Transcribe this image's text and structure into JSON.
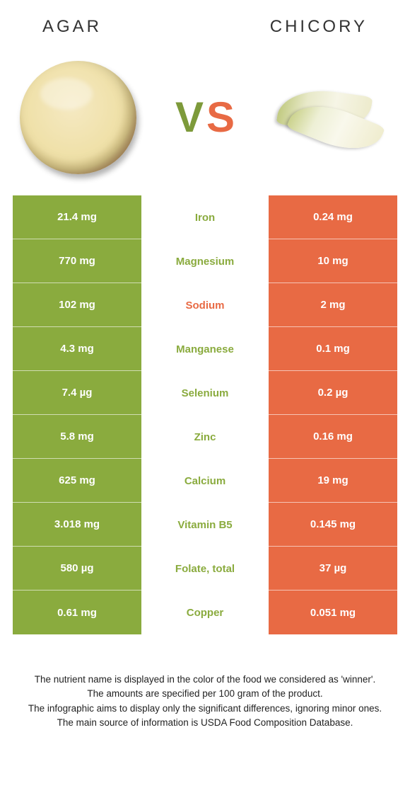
{
  "colors": {
    "agar": "#8aab3e",
    "chicory": "#e86a44",
    "white": "#ffffff",
    "text": "#333333"
  },
  "header": {
    "left": "AGAR",
    "right": "CHICORY",
    "vs_v": "V",
    "vs_s": "S"
  },
  "table": {
    "left_bg": "#8aab3e",
    "right_bg": "#e86a44",
    "rows": [
      {
        "left": "21.4 mg",
        "label": "Iron",
        "right": "0.24 mg",
        "label_color": "#8aab3e"
      },
      {
        "left": "770 mg",
        "label": "Magnesium",
        "right": "10 mg",
        "label_color": "#8aab3e"
      },
      {
        "left": "102 mg",
        "label": "Sodium",
        "right": "2 mg",
        "label_color": "#e86a44"
      },
      {
        "left": "4.3 mg",
        "label": "Manganese",
        "right": "0.1 mg",
        "label_color": "#8aab3e"
      },
      {
        "left": "7.4 µg",
        "label": "Selenium",
        "right": "0.2 µg",
        "label_color": "#8aab3e"
      },
      {
        "left": "5.8 mg",
        "label": "Zinc",
        "right": "0.16 mg",
        "label_color": "#8aab3e"
      },
      {
        "left": "625 mg",
        "label": "Calcium",
        "right": "19 mg",
        "label_color": "#8aab3e"
      },
      {
        "left": "3.018 mg",
        "label": "Vitamin B5",
        "right": "0.145 mg",
        "label_color": "#8aab3e"
      },
      {
        "left": "580 µg",
        "label": "Folate, total",
        "right": "37 µg",
        "label_color": "#8aab3e"
      },
      {
        "left": "0.61 mg",
        "label": "Copper",
        "right": "0.051 mg",
        "label_color": "#8aab3e"
      }
    ]
  },
  "footnote": {
    "l1": "The nutrient name is displayed in the color of the food we considered as 'winner'.",
    "l2": "The amounts are specified per 100 gram of the product.",
    "l3": "The infographic aims to display only the significant differences, ignoring minor ones.",
    "l4": "The main source of information is USDA Food Composition Database."
  }
}
